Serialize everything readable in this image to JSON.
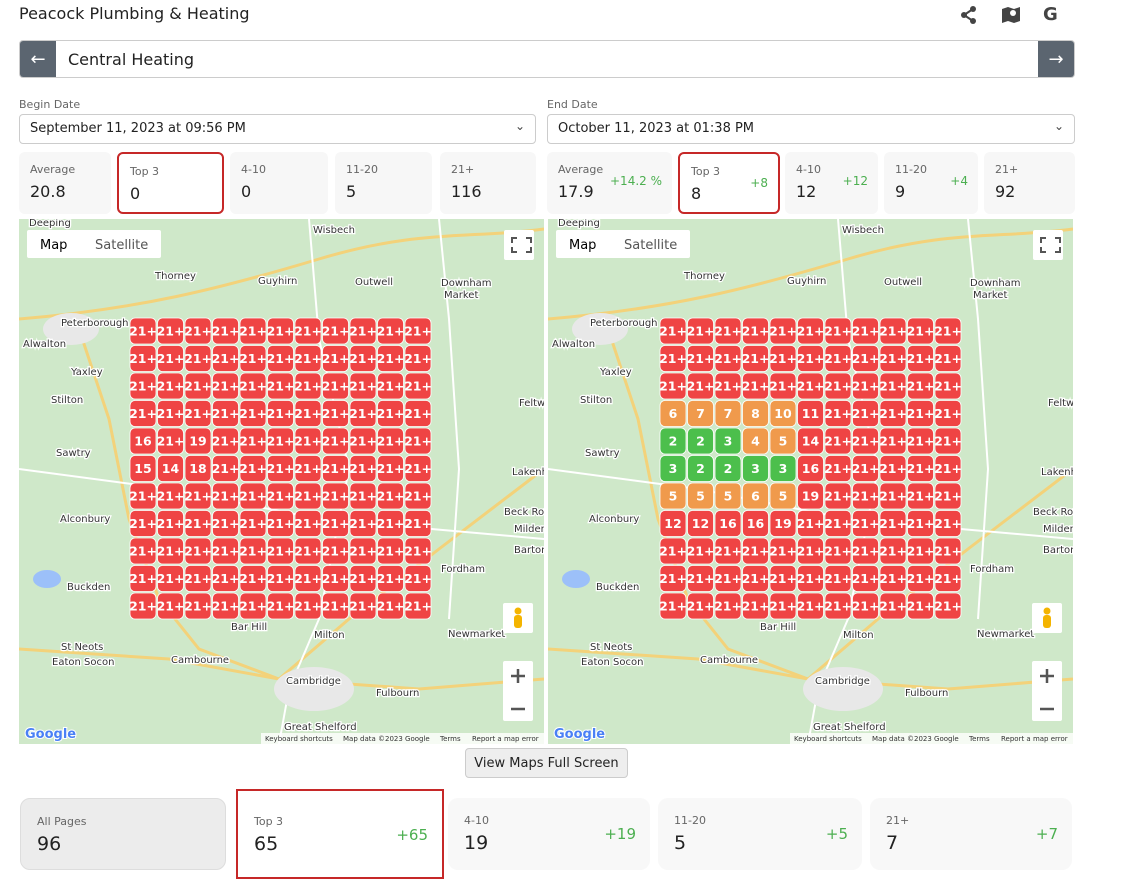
{
  "header": {
    "title": "Peacock Plumbing & Heating",
    "google_icon": "G",
    "search": "Central Heating"
  },
  "dates": [
    {
      "label": "Begin Date",
      "value": "September 11, 2023 at 09:56 PM"
    },
    {
      "label": "End Date",
      "value": "October 11, 2023 at 01:38 PM"
    }
  ],
  "stats": [
    [
      {
        "label": "Average",
        "value": 20.8
      },
      {
        "label": "Top 3",
        "value": 0
      },
      {
        "label": "4-10",
        "value": 0
      },
      {
        "label": "11-20",
        "value": 5
      },
      {
        "label": "21+",
        "value": 116
      }
    ],
    [
      {
        "label": "Average",
        "value": 17.9,
        "change": "+14.2 %"
      },
      {
        "label": "Top 3",
        "value": 8,
        "change": "+8"
      },
      {
        "label": "4-10",
        "value": 12,
        "change": "+12"
      },
      {
        "label": "11-20",
        "value": 9,
        "change": "+4"
      },
      {
        "label": "21+",
        "value": 92
      }
    ]
  ],
  "map": {
    "map_button": "Map",
    "satellite_button": "Satellite",
    "logo": "Google",
    "attribution": [
      "Keyboard shortcuts",
      "Map data ©2023 Google",
      "Terms",
      "Report a map error"
    ],
    "places": [
      "Deeping",
      "Wisbech",
      "Thorney",
      "Guyhirn",
      "Outwell",
      "Downham",
      "Market",
      "Peterborough",
      "Alwalton",
      "Yaxley",
      "Stilton",
      "Sawtry",
      "Alconbury",
      "Buckden",
      "St Neots",
      "Eaton Socon",
      "Cambourne",
      "Bar Hill",
      "Milton",
      "Cambridge",
      "Fulbourn",
      "Great Shelford",
      "Newmarket",
      "Fordham",
      "Lakenh",
      "Beck Row",
      "Milden",
      "Barton",
      "Feltw"
    ]
  },
  "grids": [
    [
      [
        "21+",
        "21+",
        "21+",
        "21+",
        "21+",
        "21+",
        "21+",
        "21+",
        "21+",
        "21+",
        "21+"
      ],
      [
        "21+",
        "21+",
        "21+",
        "21+",
        "21+",
        "21+",
        "21+",
        "21+",
        "21+",
        "21+",
        "21+"
      ],
      [
        "21+",
        "21+",
        "21+",
        "21+",
        "21+",
        "21+",
        "21+",
        "21+",
        "21+",
        "21+",
        "21+"
      ],
      [
        "21+",
        "21+",
        "21+",
        "21+",
        "21+",
        "21+",
        "21+",
        "21+",
        "21+",
        "21+",
        "21+"
      ],
      [
        16,
        "21+",
        19,
        "21+",
        "21+",
        "21+",
        "21+",
        "21+",
        "21+",
        "21+",
        "21+"
      ],
      [
        15,
        14,
        18,
        "21+",
        "21+",
        "21+",
        "21+",
        "21+",
        "21+",
        "21+",
        "21+"
      ],
      [
        "21+",
        "21+",
        "21+",
        "21+",
        "21+",
        "21+",
        "21+",
        "21+",
        "21+",
        "21+",
        "21+"
      ],
      [
        "21+",
        "21+",
        "21+",
        "21+",
        "21+",
        "21+",
        "21+",
        "21+",
        "21+",
        "21+",
        "21+"
      ],
      [
        "21+",
        "21+",
        "21+",
        "21+",
        "21+",
        "21+",
        "21+",
        "21+",
        "21+",
        "21+",
        "21+"
      ],
      [
        "21+",
        "21+",
        "21+",
        "21+",
        "21+",
        "21+",
        "21+",
        "21+",
        "21+",
        "21+",
        "21+"
      ],
      [
        "21+",
        "21+",
        "21+",
        "21+",
        "21+",
        "21+",
        "21+",
        "21+",
        "21+",
        "21+",
        "21+"
      ]
    ],
    [
      [
        "21+",
        "21+",
        "21+",
        "21+",
        "21+",
        "21+",
        "21+",
        "21+",
        "21+",
        "21+",
        "21+"
      ],
      [
        "21+",
        "21+",
        "21+",
        "21+",
        "21+",
        "21+",
        "21+",
        "21+",
        "21+",
        "21+",
        "21+"
      ],
      [
        "21+",
        "21+",
        "21+",
        "21+",
        "21+",
        "21+",
        "21+",
        "21+",
        "21+",
        "21+",
        "21+"
      ],
      [
        6,
        7,
        7,
        8,
        10,
        11,
        "21+",
        "21+",
        "21+",
        "21+",
        "21+"
      ],
      [
        2,
        2,
        3,
        4,
        5,
        14,
        "21+",
        "21+",
        "21+",
        "21+",
        "21+"
      ],
      [
        3,
        2,
        2,
        3,
        3,
        16,
        "21+",
        "21+",
        "21+",
        "21+",
        "21+"
      ],
      [
        5,
        5,
        5,
        6,
        5,
        19,
        "21+",
        "21+",
        "21+",
        "21+",
        "21+"
      ],
      [
        12,
        12,
        16,
        16,
        19,
        "21+",
        "21+",
        "21+",
        "21+",
        "21+",
        "21+"
      ],
      [
        "21+",
        "21+",
        "21+",
        "21+",
        "21+",
        "21+",
        "21+",
        "21+",
        "21+",
        "21+",
        "21+"
      ],
      [
        "21+",
        "21+",
        "21+",
        "21+",
        "21+",
        "21+",
        "21+",
        "21+",
        "21+",
        "21+",
        "21+"
      ],
      [
        "21+",
        "21+",
        "21+",
        "21+",
        "21+",
        "21+",
        "21+",
        "21+",
        "21+",
        "21+",
        "21+"
      ]
    ]
  ],
  "full_screen_button": "View Maps Full Screen",
  "summary": [
    {
      "label": "All Pages",
      "value": 96
    },
    {
      "label": "Top 3",
      "value": 65,
      "change": "+65"
    },
    {
      "label": "4-10",
      "value": 19,
      "change": "+19"
    },
    {
      "label": "11-20",
      "value": 5,
      "change": "+5"
    },
    {
      "label": "21+",
      "value": 7,
      "change": "+7"
    }
  ]
}
